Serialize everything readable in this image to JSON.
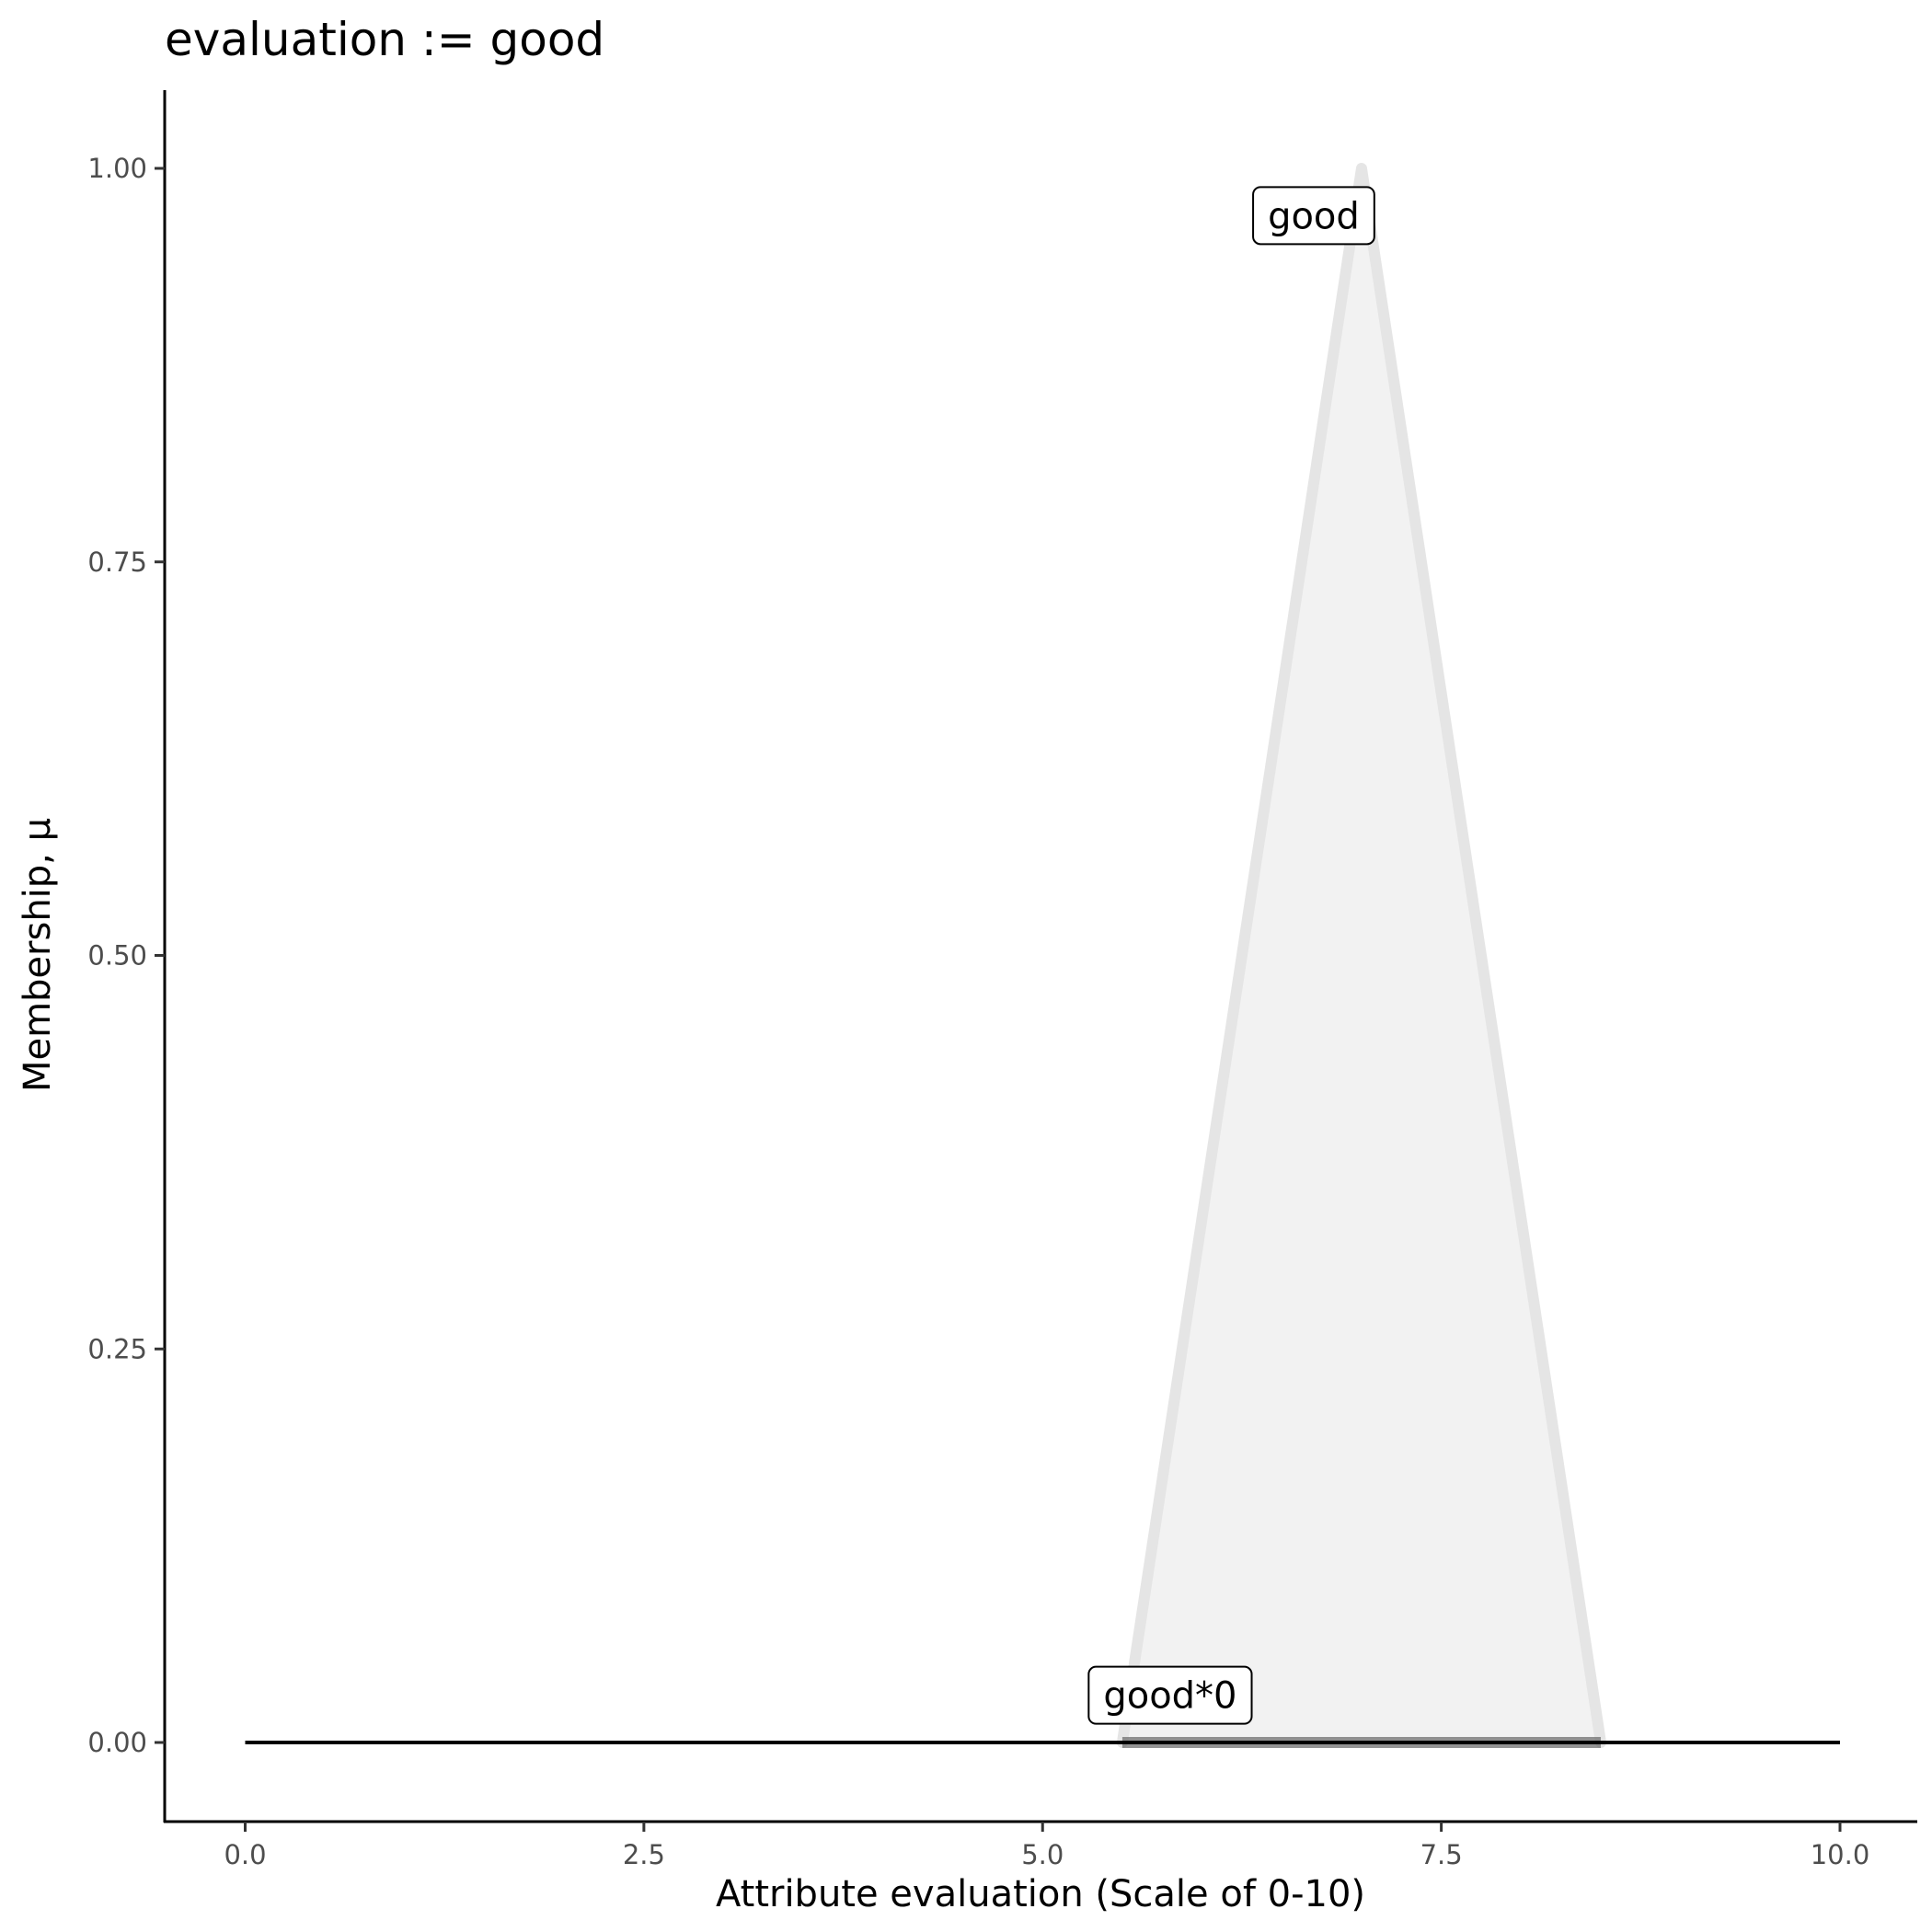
{
  "chart_data": {
    "type": "area",
    "title": "evaluation := good",
    "xlabel": "Attribute evaluation (Scale of 0-10)",
    "ylabel": "Membership, μ",
    "xlim": [
      -0.5,
      10.5
    ],
    "ylim": [
      -0.05,
      1.05
    ],
    "x_ticks": [
      "0.0",
      "2.5",
      "5.0",
      "7.5",
      "10.0"
    ],
    "x_tick_values": [
      0,
      2.5,
      5,
      7.5,
      10
    ],
    "y_ticks": [
      "0.00",
      "0.25",
      "0.50",
      "0.75",
      "1.00"
    ],
    "y_tick_values": [
      0,
      0.25,
      0.5,
      0.75,
      1
    ],
    "grid": false,
    "series": [
      {
        "label": "good",
        "x": [
          5.5,
          7,
          8.5
        ],
        "y": [
          0,
          1,
          0
        ],
        "fill": "#f2f2f2",
        "stroke": "#e5e5e5"
      },
      {
        "label": "good*0",
        "x": [
          5.5,
          8.5
        ],
        "y": [
          0,
          0
        ],
        "stroke": "#666666"
      },
      {
        "x": [
          0,
          10
        ],
        "y": [
          0,
          0
        ],
        "stroke": "#000000"
      }
    ],
    "annotations": [
      {
        "text": "good",
        "x": 6.7,
        "y": 0.97
      },
      {
        "text": "good*0",
        "x": 5.8,
        "y": 0.03
      }
    ]
  }
}
